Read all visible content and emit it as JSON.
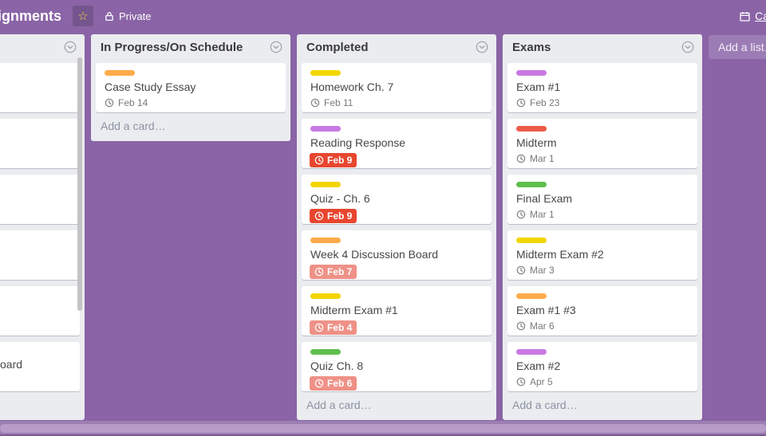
{
  "colors": {
    "board_background": "#8a64a6",
    "list_background": "#ebecf0",
    "badge_overdue": "#e8462f",
    "badge_due_soon": "#ef9187"
  },
  "label_palette": {
    "orange": "#ffab4a",
    "yellow": "#f2d600",
    "purple": "#c879e2",
    "red": "#eb5a46",
    "green": "#5fbf4d"
  },
  "topbar": {
    "board_title_fragment": "ignments",
    "star_icon": "star-outline",
    "privacy_label": "Private",
    "calendar_link_fragment": "Ca"
  },
  "board": {
    "add_list_label": "Add a list…",
    "lists": [
      {
        "title": "",
        "clipped": true,
        "cards": [
          {},
          {},
          {},
          {},
          {},
          {
            "title_fragment": "oard"
          }
        ],
        "footer": ""
      },
      {
        "title": "In Progress/On Schedule",
        "cards": [
          {
            "label_color": "orange",
            "title": "Case Study Essay",
            "due": "Feb 14",
            "due_state": "normal"
          }
        ],
        "footer": "Add a card…"
      },
      {
        "title": "Completed",
        "cards": [
          {
            "label_color": "yellow",
            "title": "Homework Ch. 7",
            "due": "Feb 11",
            "due_state": "normal"
          },
          {
            "label_color": "purple",
            "title": "Reading Response",
            "due": "Feb 9",
            "due_state": "overdue"
          },
          {
            "label_color": "yellow",
            "title": "Quiz - Ch. 6",
            "due": "Feb 9",
            "due_state": "overdue"
          },
          {
            "label_color": "orange",
            "title": "Week 4 Discussion Board",
            "due": "Feb 7",
            "due_state": "soon"
          },
          {
            "label_color": "yellow",
            "title": "Midterm Exam #1",
            "due": "Feb 4",
            "due_state": "soon"
          },
          {
            "label_color": "green",
            "title": "Quiz Ch. 8",
            "due": "Feb 6",
            "due_state": "soon"
          }
        ],
        "footer": "Add a card…"
      },
      {
        "title": "Exams",
        "cards": [
          {
            "label_color": "purple",
            "title": "Exam #1",
            "due": "Feb 23",
            "due_state": "normal"
          },
          {
            "label_color": "red",
            "title": "Midterm",
            "due": "Mar 1",
            "due_state": "normal"
          },
          {
            "label_color": "green",
            "title": "Final Exam",
            "due": "Mar 1",
            "due_state": "normal"
          },
          {
            "label_color": "yellow",
            "title": "Midterm Exam #2",
            "due": "Mar 3",
            "due_state": "normal"
          },
          {
            "label_color": "orange",
            "title": "Exam #1 #3",
            "due": "Mar 6",
            "due_state": "normal"
          },
          {
            "label_color": "purple",
            "title": "Exam #2",
            "due": "Apr 5",
            "due_state": "normal"
          }
        ],
        "footer": "Add a card…"
      }
    ]
  }
}
